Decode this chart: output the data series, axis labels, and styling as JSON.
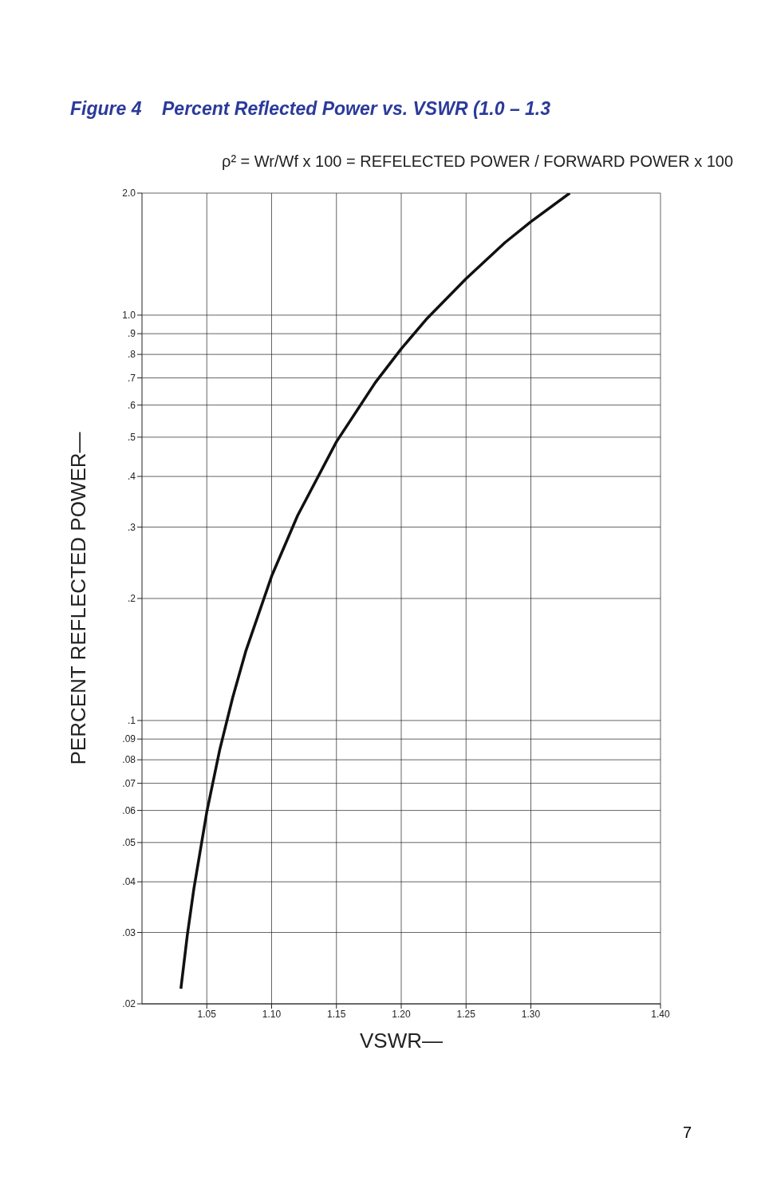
{
  "chart_data": {
    "type": "line",
    "title": "Figure 4    Percent Reflected Power vs. VSWR (1.0 – 1.3",
    "xlabel": "VSWR—",
    "ylabel": "PERCENT REFLECTED POWER—",
    "annotations": [
      "ρ² = Wr/Wf x 100 = REFELECTED POWER / FORWARD POWER x 100",
      "7"
    ],
    "x": [
      1.03,
      1.035,
      1.04,
      1.05,
      1.06,
      1.07,
      1.08,
      1.1,
      1.12,
      1.15,
      1.18,
      1.2,
      1.22,
      1.25,
      1.28,
      1.3,
      1.33
    ],
    "series": [
      {
        "color": "#111111",
        "values": [
          0.0218,
          0.0296,
          0.0384,
          0.0595,
          0.0848,
          0.114,
          0.148,
          0.227,
          0.32,
          0.487,
          0.682,
          0.826,
          0.982,
          1.23,
          1.51,
          1.7,
          2.0
        ]
      }
    ],
    "log": "y",
    "xlim": [
      1.0,
      1.4
    ],
    "xticks": [
      1.05,
      {
        "value": 1.1,
        "label": "1.10"
      },
      1.15,
      {
        "value": 1.2,
        "label": "1.20"
      },
      1.25,
      {
        "value": 1.3,
        "label": "1.30"
      },
      {
        "value": 1.4,
        "label": "1.40"
      }
    ],
    "ylim": [
      0.02,
      2.0
    ],
    "yticks": [
      {
        "value": 0.02,
        "label": ".02"
      },
      {
        "value": 0.03,
        "label": ".03"
      },
      {
        "value": 0.04,
        "label": ".04"
      },
      {
        "value": 0.05,
        "label": ".05"
      },
      {
        "value": 0.06,
        "label": ".06"
      },
      {
        "value": 0.07,
        "label": ".07"
      },
      {
        "value": 0.08,
        "label": ".08"
      },
      {
        "value": 0.09,
        "label": ".09"
      },
      {
        "value": 0.1,
        "label": ".1"
      },
      {
        "value": 0.2,
        "label": ".2"
      },
      {
        "value": 0.3,
        "label": ".3"
      },
      {
        "value": 0.4,
        "label": ".4"
      },
      {
        "value": 0.5,
        "label": ".5"
      },
      {
        "value": 0.6,
        "label": ".6"
      },
      {
        "value": 0.7,
        "label": ".7"
      },
      {
        "value": 0.8,
        "label": ".8"
      },
      {
        "value": 0.9,
        "label": ".9"
      },
      {
        "value": 1.0,
        "label": "1.0"
      },
      {
        "value": 2.0,
        "label": "2.0"
      }
    ],
    "grid": true,
    "marker": "none",
    "line_style": "solid"
  }
}
